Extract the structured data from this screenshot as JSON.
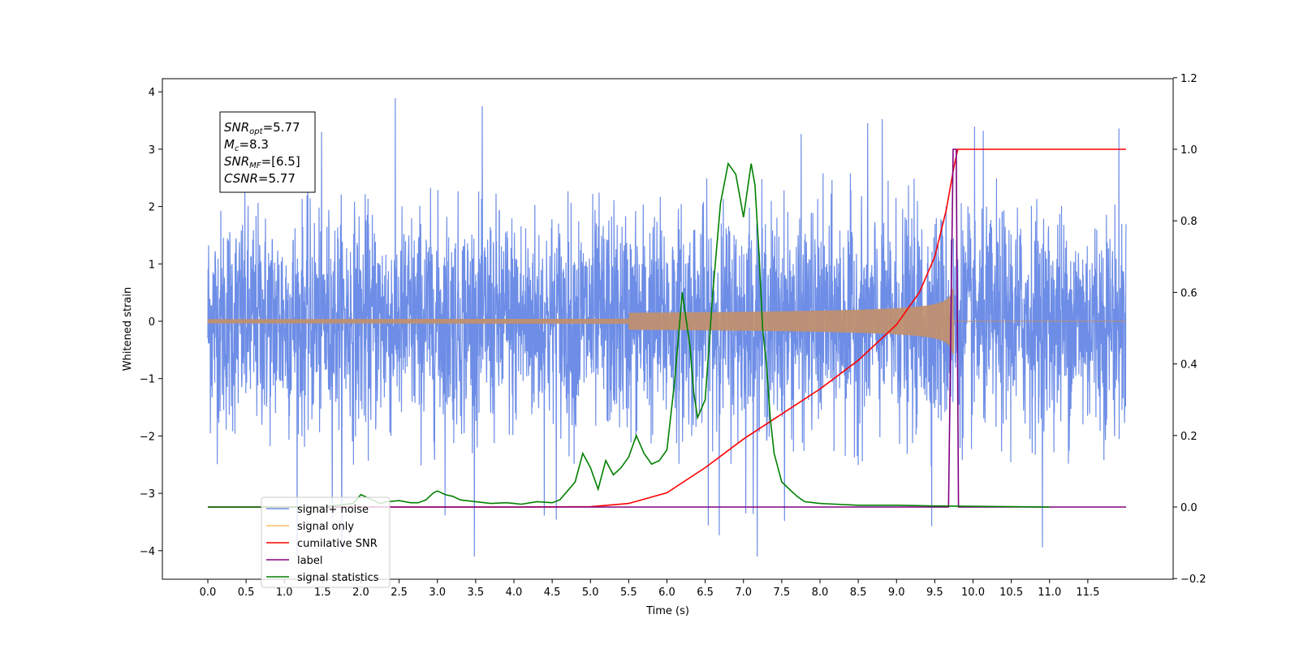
{
  "chart_data": {
    "type": "line",
    "title": "",
    "xlabel": "Time (s)",
    "ylabel_left": "Whitened strain",
    "ylabel_right": "",
    "xlim": [
      -0.6,
      12.6
    ],
    "ylim_left": [
      -4.5,
      4.25
    ],
    "ylim_right": [
      -0.2,
      1.2
    ],
    "x_ticks": [
      "0.0",
      "0.5",
      "1.0",
      "1.5",
      "2.0",
      "2.5",
      "3.0",
      "3.5",
      "4.0",
      "4.5",
      "5.0",
      "5.5",
      "6.0",
      "6.5",
      "7.0",
      "7.5",
      "8.0",
      "8.5",
      "9.0",
      "9.5",
      "10.0",
      "10.5",
      "11.0",
      "11.5"
    ],
    "y_ticks_left": [
      "4",
      "3",
      "2",
      "1",
      "0",
      "−1",
      "−2",
      "−3",
      "−4"
    ],
    "y_ticks_right": [
      "1.2",
      "1.0",
      "0.8",
      "0.6",
      "0.4",
      "0.2",
      "0.0",
      "−0.2"
    ],
    "grid": false,
    "legend_position": "bottom-left",
    "stats_box": [
      "SNR_opt=5.77",
      "M_c=8.3",
      "SNR_MF=[6.5]",
      "CSNR=5.77"
    ],
    "stats": {
      "snr_opt": {
        "sym": "SNR",
        "sub": "opt",
        "val": "=5.77"
      },
      "mc": {
        "sym": "M",
        "sub": "c",
        "val": "=8.3"
      },
      "snr_mf": {
        "sym": "SNR",
        "sub": "MF",
        "val": "=[6.5]"
      },
      "csnr": {
        "sym": "CSNR",
        "sub": "",
        "val": "=5.77"
      }
    },
    "series": [
      {
        "name": "signal+ noise",
        "axis": "left",
        "color": "#6d8de6",
        "kind": "noise",
        "amplitude_typical": 1.6,
        "range": [
          -4.1,
          3.9
        ],
        "x_range": [
          0.0,
          12.0
        ]
      },
      {
        "name": "signal only",
        "axis": "left",
        "color": "#ffbf66",
        "kind": "chirp",
        "x_range": [
          0.0,
          12.0
        ],
        "peak_time": 9.75,
        "peak_amplitude": 0.45
      },
      {
        "name": "cumilative SNR",
        "axis": "right",
        "color": "#ff0000",
        "x": [
          0.0,
          4.0,
          5.0,
          5.5,
          6.0,
          6.5,
          7.0,
          7.5,
          8.0,
          8.5,
          9.0,
          9.3,
          9.5,
          9.65,
          9.75,
          9.8,
          12.0
        ],
        "y": [
          0.0,
          0.0,
          0.001,
          0.01,
          0.04,
          0.11,
          0.19,
          0.26,
          0.33,
          0.41,
          0.51,
          0.6,
          0.7,
          0.83,
          0.95,
          1.0,
          1.0
        ]
      },
      {
        "name": "label",
        "axis": "right",
        "color": "#800080",
        "x": [
          0.0,
          9.68,
          9.74,
          9.78,
          9.81,
          9.82,
          12.0
        ],
        "y": [
          0.0,
          0.0,
          1.0,
          1.0,
          0.0,
          0.0,
          0.0
        ]
      },
      {
        "name": "signal statistics",
        "axis": "right",
        "color": "#008000",
        "x": [
          0.0,
          1.5,
          1.9,
          2.0,
          2.05,
          2.15,
          2.25,
          2.35,
          2.5,
          2.65,
          2.75,
          2.85,
          2.95,
          3.0,
          3.1,
          3.2,
          3.3,
          3.5,
          3.7,
          3.9,
          4.0,
          4.1,
          4.3,
          4.5,
          4.6,
          4.7,
          4.8,
          4.9,
          5.0,
          5.1,
          5.2,
          5.3,
          5.4,
          5.5,
          5.6,
          5.7,
          5.8,
          5.9,
          6.0,
          6.1,
          6.2,
          6.3,
          6.35,
          6.4,
          6.5,
          6.6,
          6.7,
          6.8,
          6.9,
          7.0,
          7.1,
          7.15,
          7.2,
          7.25,
          7.3,
          7.35,
          7.4,
          7.5,
          7.6,
          7.7,
          7.8,
          8.0,
          8.5,
          9.0,
          9.5,
          11.0
        ],
        "y": [
          0.0,
          0.0,
          0.01,
          0.035,
          0.03,
          0.02,
          0.01,
          0.015,
          0.018,
          0.012,
          0.012,
          0.02,
          0.04,
          0.045,
          0.035,
          0.03,
          0.02,
          0.015,
          0.01,
          0.012,
          0.01,
          0.008,
          0.015,
          0.012,
          0.02,
          0.045,
          0.07,
          0.15,
          0.11,
          0.05,
          0.13,
          0.09,
          0.11,
          0.14,
          0.2,
          0.15,
          0.12,
          0.13,
          0.16,
          0.35,
          0.6,
          0.45,
          0.32,
          0.25,
          0.3,
          0.6,
          0.85,
          0.96,
          0.93,
          0.81,
          0.96,
          0.9,
          0.72,
          0.5,
          0.4,
          0.25,
          0.15,
          0.07,
          0.05,
          0.03,
          0.015,
          0.01,
          0.005,
          0.005,
          0.003,
          0.0
        ]
      }
    ]
  }
}
